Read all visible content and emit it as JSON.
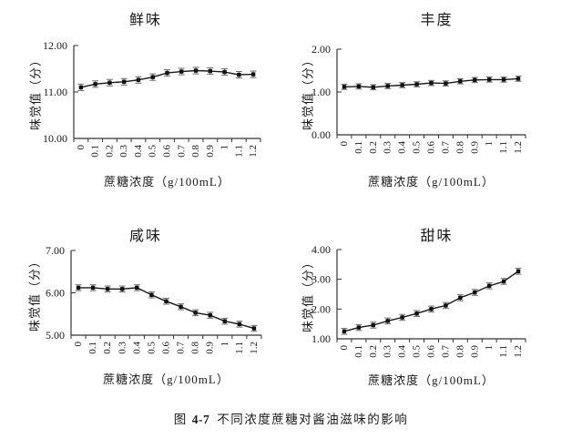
{
  "figure": {
    "caption": {
      "prefix": "图",
      "number": "4-7",
      "text": "不同浓度蔗糖对酱油滋味的影响"
    }
  },
  "colors": {
    "line": "#1a1a1a",
    "marker": "#111111",
    "error_bar": "#6e6e6e",
    "axis": "#333333",
    "text": "#1a1a1a",
    "background": "#ffffff"
  },
  "chart_data": [
    {
      "type": "line",
      "title": "鲜味",
      "xlabel": "蔗糖浓度（g/100mL）",
      "ylabel": "味觉值（分）",
      "categories": [
        "0",
        "0.1",
        "0.2",
        "0.3",
        "0.4",
        "0.5",
        "0.6",
        "0.7",
        "0.8",
        "0.9",
        "1",
        "1.1",
        "1.2"
      ],
      "values": [
        11.1,
        11.17,
        11.2,
        11.22,
        11.26,
        11.32,
        11.41,
        11.44,
        11.46,
        11.45,
        11.43,
        11.37,
        11.38
      ],
      "error": 0.07,
      "error_bars": true,
      "ylim": [
        10,
        12
      ],
      "yticks": [
        "10.00",
        "11.00",
        "12.00"
      ],
      "grid": false,
      "legend": "none",
      "marker": "square"
    },
    {
      "type": "line",
      "title": "丰度",
      "xlabel": "蔗糖浓度（g/100mL）",
      "ylabel": "味觉值（分）",
      "categories": [
        "0",
        "0.1",
        "0.2",
        "0.3",
        "0.4",
        "0.5",
        "0.6",
        "0.7",
        "0.8",
        "0.9",
        "1",
        "1.1",
        "1.2"
      ],
      "values": [
        1.12,
        1.13,
        1.11,
        1.14,
        1.16,
        1.18,
        1.21,
        1.2,
        1.25,
        1.28,
        1.29,
        1.29,
        1.31
      ],
      "error": 0.06,
      "error_bars": true,
      "ylim": [
        0,
        2
      ],
      "yticks": [
        "0.00",
        "1.00",
        "2.00"
      ],
      "grid": false,
      "legend": "none",
      "marker": "square"
    },
    {
      "type": "line",
      "title": "咸味",
      "xlabel": "蔗糖浓度（g/100mL）",
      "ylabel": "味觉值（分）",
      "categories": [
        "0",
        "0.1",
        "0.2",
        "0.3",
        "0.4",
        "0.5",
        "0.6",
        "0.7",
        "0.8",
        "0.9",
        "1",
        "1.1",
        "1.2"
      ],
      "values": [
        6.12,
        6.12,
        6.09,
        6.09,
        6.12,
        5.95,
        5.8,
        5.67,
        5.53,
        5.47,
        5.33,
        5.26,
        5.16
      ],
      "error": 0.07,
      "error_bars": true,
      "ylim": [
        5,
        7
      ],
      "yticks": [
        "5.00",
        "6.00",
        "7.00"
      ],
      "grid": false,
      "legend": "none",
      "marker": "square"
    },
    {
      "type": "line",
      "title": "甜味",
      "xlabel": "蔗糖浓度（g/100mL）",
      "ylabel": "味觉值（分）",
      "categories": [
        "0",
        "0.1",
        "0.2",
        "0.3",
        "0.4",
        "0.5",
        "0.6",
        "0.7",
        "0.8",
        "0.9",
        "1",
        "1.1",
        "1.2"
      ],
      "values": [
        1.25,
        1.38,
        1.46,
        1.6,
        1.72,
        1.85,
        2.0,
        2.12,
        2.38,
        2.56,
        2.78,
        2.93,
        3.27
      ],
      "error": 0.1,
      "error_bars": true,
      "ylim": [
        1,
        4
      ],
      "yticks": [
        "1.00",
        "2.00",
        "3.00",
        "4.00"
      ],
      "grid": false,
      "legend": "none",
      "marker": "square"
    }
  ]
}
